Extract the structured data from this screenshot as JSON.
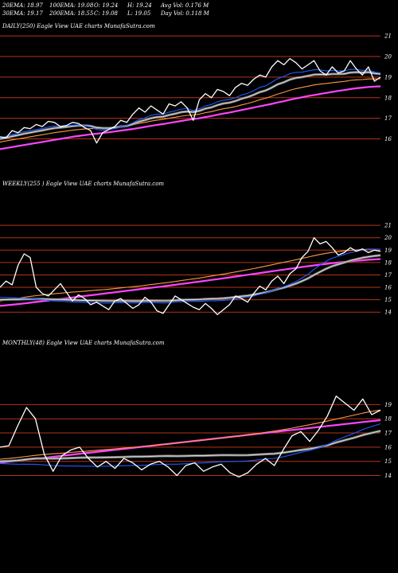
{
  "header": {
    "row1": [
      "20EMA: 18.97",
      "100EMA: 19.08",
      "O: 19.24",
      "H: 19.24",
      "Avg Vol: 0.176  M"
    ],
    "row2": [
      "30EMA: 19.17",
      "200EMA: 18.55",
      "C: 19.08",
      "L: 19.05",
      "Day Vol: 0.118  M"
    ]
  },
  "chart_data": [
    {
      "type": "line",
      "title": "DAILY(250) Eagle  View  UAE charts MunafaSutra.com",
      "yticks": [
        16,
        17,
        18,
        19,
        20,
        21
      ],
      "ylim": [
        15.4,
        21.2
      ],
      "series": [
        {
          "values": [
            16.1,
            16.05,
            16.4,
            16.3,
            16.55,
            16.5,
            16.7,
            16.6,
            16.85,
            16.8,
            16.6,
            16.65,
            16.8,
            16.75,
            16.55,
            16.4,
            15.8,
            16.3,
            16.45,
            16.6,
            16.9,
            16.8,
            17.2,
            17.5,
            17.3,
            17.6,
            17.4,
            17.2,
            17.7,
            17.6,
            17.8,
            17.5,
            16.9,
            17.9,
            18.2,
            18.0,
            18.4,
            18.3,
            18.1,
            18.5,
            18.7,
            18.6,
            18.9,
            19.1,
            19.0,
            19.5,
            19.8,
            19.6,
            19.9,
            19.7,
            19.4,
            19.6,
            19.8,
            19.3,
            19.1,
            19.5,
            19.2,
            19.3,
            19.8,
            19.4,
            19.1,
            19.5,
            18.8,
            19.0
          ],
          "color": "#ffffff"
        },
        {
          "values": [
            16.05,
            16.12,
            16.2,
            16.28,
            16.35,
            16.4,
            16.45,
            16.5,
            16.58,
            16.62,
            16.62,
            16.63,
            16.66,
            16.68,
            16.64,
            16.58,
            16.45,
            16.42,
            16.45,
            16.5,
            16.6,
            16.65,
            16.78,
            16.93,
            17.02,
            17.14,
            17.2,
            17.2,
            17.3,
            17.36,
            17.45,
            17.47,
            17.38,
            17.46,
            17.6,
            17.67,
            17.8,
            17.88,
            17.91,
            18.0,
            18.13,
            18.21,
            18.34,
            18.5,
            18.58,
            18.75,
            18.93,
            19.03,
            19.17,
            19.23,
            19.24,
            19.3,
            19.36,
            19.35,
            19.3,
            19.32,
            19.3,
            19.3,
            19.38,
            19.38,
            19.33,
            19.35,
            19.25,
            19.2
          ],
          "color": "#1d5cff"
        },
        {
          "values": [
            16.0,
            16.05,
            16.12,
            16.18,
            16.25,
            16.3,
            16.36,
            16.41,
            16.47,
            16.52,
            16.55,
            16.58,
            16.62,
            16.65,
            16.65,
            16.62,
            16.55,
            16.52,
            16.52,
            16.54,
            16.6,
            16.63,
            16.72,
            16.83,
            16.91,
            17.0,
            17.06,
            17.08,
            17.16,
            17.22,
            17.3,
            17.33,
            17.3,
            17.36,
            17.47,
            17.53,
            17.64,
            17.72,
            17.76,
            17.84,
            17.95,
            18.03,
            18.14,
            18.27,
            18.35,
            18.49,
            18.65,
            18.75,
            18.88,
            18.96,
            19.0,
            19.06,
            19.12,
            19.13,
            19.12,
            19.15,
            19.15,
            19.16,
            19.22,
            19.24,
            19.22,
            19.24,
            19.18,
            19.15
          ],
          "color": "#d8d8d8"
        },
        {
          "values": [
            15.85,
            15.9,
            15.95,
            16.0,
            16.05,
            16.1,
            16.15,
            16.2,
            16.25,
            16.3,
            16.34,
            16.38,
            16.42,
            16.45,
            16.48,
            16.5,
            16.5,
            16.52,
            16.54,
            16.56,
            16.6,
            16.63,
            16.68,
            16.75,
            16.8,
            16.86,
            16.91,
            16.95,
            17.0,
            17.05,
            17.1,
            17.14,
            17.16,
            17.2,
            17.27,
            17.32,
            17.4,
            17.46,
            17.51,
            17.57,
            17.65,
            17.72,
            17.8,
            17.9,
            17.97,
            18.07,
            18.18,
            18.26,
            18.36,
            18.44,
            18.5,
            18.56,
            18.62,
            18.66,
            18.69,
            18.73,
            18.76,
            18.79,
            18.84,
            18.87,
            18.88,
            18.91,
            18.91,
            18.92
          ],
          "color": "#ff9944"
        },
        {
          "values": [
            15.5,
            15.55,
            15.6,
            15.65,
            15.7,
            15.75,
            15.8,
            15.85,
            15.9,
            15.95,
            16.0,
            16.05,
            16.1,
            16.14,
            16.18,
            16.22,
            16.25,
            16.28,
            16.32,
            16.36,
            16.4,
            16.44,
            16.48,
            16.53,
            16.58,
            16.63,
            16.68,
            16.72,
            16.77,
            16.82,
            16.87,
            16.92,
            16.96,
            17.0,
            17.06,
            17.11,
            17.17,
            17.23,
            17.28,
            17.34,
            17.4,
            17.46,
            17.52,
            17.58,
            17.64,
            17.7,
            17.77,
            17.83,
            17.9,
            17.96,
            18.02,
            18.08,
            18.13,
            18.18,
            18.23,
            18.28,
            18.33,
            18.37,
            18.42,
            18.46,
            18.49,
            18.52,
            18.54,
            18.55
          ],
          "color": "#ff44ff"
        }
      ]
    },
    {
      "type": "line",
      "title": "WEEKLY(255                                ) Eagle  View  UAE charts MunafaSutra.com",
      "yticks": [
        14,
        15,
        16,
        17,
        18,
        19,
        20,
        21
      ],
      "ylim": [
        13.5,
        21.2
      ],
      "series": [
        {
          "values": [
            16.0,
            16.5,
            16.2,
            17.8,
            18.7,
            18.4,
            16.0,
            15.5,
            15.3,
            15.8,
            16.3,
            15.6,
            14.9,
            15.4,
            15.1,
            14.6,
            14.8,
            14.5,
            14.2,
            14.9,
            15.1,
            14.7,
            14.3,
            14.6,
            15.2,
            14.8,
            14.1,
            13.9,
            14.6,
            15.3,
            15.0,
            14.7,
            14.4,
            14.2,
            14.7,
            14.3,
            13.8,
            14.2,
            14.6,
            15.3,
            15.1,
            14.8,
            15.5,
            16.1,
            15.8,
            16.5,
            16.9,
            16.3,
            17.1,
            17.5,
            18.4,
            18.9,
            20.0,
            19.5,
            19.7,
            19.2,
            18.6,
            18.8,
            19.2,
            18.9,
            19.1,
            18.8,
            19.0,
            18.9
          ],
          "color": "#ffffff"
        },
        {
          "values": [
            15.2,
            15.18,
            15.16,
            15.14,
            15.12,
            15.1,
            15.05,
            15.0,
            14.95,
            14.9,
            14.88,
            14.85,
            14.82,
            14.8,
            14.78,
            14.76,
            14.75,
            14.74,
            14.73,
            14.75,
            14.76,
            14.75,
            14.74,
            14.74,
            14.77,
            14.78,
            14.76,
            14.74,
            14.76,
            14.8,
            14.84,
            14.86,
            14.86,
            14.86,
            14.9,
            14.92,
            14.92,
            14.95,
            14.99,
            15.06,
            15.14,
            15.2,
            15.3,
            15.43,
            15.56,
            15.72,
            15.9,
            16.05,
            16.25,
            16.47,
            16.75,
            17.05,
            17.45,
            17.8,
            18.1,
            18.35,
            18.5,
            18.65,
            18.8,
            18.9,
            19.0,
            19.05,
            19.08,
            19.08
          ],
          "color": "#1d5cff"
        },
        {
          "values": [
            15.0,
            15.01,
            15.02,
            15.03,
            15.05,
            15.06,
            15.06,
            15.05,
            15.04,
            15.03,
            15.02,
            15.0,
            14.98,
            14.96,
            14.95,
            14.94,
            14.93,
            14.92,
            14.91,
            14.91,
            14.91,
            14.91,
            14.9,
            14.9,
            14.92,
            14.93,
            14.92,
            14.91,
            14.92,
            14.95,
            14.98,
            15.0,
            15.01,
            15.02,
            15.05,
            15.08,
            15.09,
            15.12,
            15.16,
            15.22,
            15.28,
            15.33,
            15.41,
            15.5,
            15.6,
            15.72,
            15.86,
            15.98,
            16.13,
            16.3,
            16.5,
            16.72,
            17.0,
            17.25,
            17.5,
            17.7,
            17.85,
            18.0,
            18.15,
            18.27,
            18.38,
            18.46,
            18.53,
            18.58
          ],
          "color": "#d8d8d8"
        },
        {
          "values": [
            14.9,
            14.98,
            15.05,
            15.12,
            15.2,
            15.27,
            15.33,
            15.38,
            15.43,
            15.48,
            15.53,
            15.57,
            15.61,
            15.65,
            15.69,
            15.73,
            15.77,
            15.81,
            15.85,
            15.9,
            15.95,
            16.0,
            16.05,
            16.1,
            16.16,
            16.22,
            16.28,
            16.34,
            16.4,
            16.47,
            16.54,
            16.61,
            16.68,
            16.75,
            16.83,
            16.91,
            16.99,
            17.07,
            17.15,
            17.24,
            17.33,
            17.42,
            17.51,
            17.61,
            17.71,
            17.81,
            17.92,
            18.02,
            18.12,
            18.22,
            18.33,
            18.44,
            18.55,
            18.65,
            18.74,
            18.82,
            18.88,
            18.94,
            18.98,
            19.02,
            19.05,
            19.07,
            19.08,
            19.08
          ],
          "color": "#ff9944"
        },
        {
          "values": [
            14.5,
            14.55,
            14.6,
            14.65,
            14.7,
            14.76,
            14.82,
            14.88,
            14.94,
            15.0,
            15.06,
            15.12,
            15.18,
            15.24,
            15.3,
            15.36,
            15.42,
            15.48,
            15.54,
            15.6,
            15.66,
            15.72,
            15.78,
            15.84,
            15.9,
            15.96,
            16.02,
            16.08,
            16.14,
            16.2,
            16.27,
            16.33,
            16.4,
            16.46,
            16.53,
            16.6,
            16.66,
            16.73,
            16.8,
            16.87,
            16.94,
            17.01,
            17.08,
            17.15,
            17.22,
            17.29,
            17.36,
            17.43,
            17.5,
            17.57,
            17.64,
            17.7,
            17.77,
            17.83,
            17.89,
            17.95,
            18.0,
            18.05,
            18.1,
            18.14,
            18.18,
            18.22,
            18.25,
            18.28
          ],
          "color": "#ff44ff"
        }
      ]
    },
    {
      "type": "line",
      "title": "MONTHLY(48) Eagle  View  UAE charts MunafaSutra.com",
      "yticks": [
        14,
        15,
        16,
        17,
        18,
        19
      ],
      "ylim": [
        13.3,
        20.2
      ],
      "series": [
        {
          "values": [
            16.0,
            16.1,
            17.5,
            18.8,
            18.0,
            15.5,
            14.3,
            15.4,
            15.8,
            16.0,
            15.2,
            14.6,
            15.0,
            14.5,
            15.2,
            14.9,
            14.4,
            14.8,
            15.0,
            14.6,
            14.0,
            14.7,
            14.9,
            14.3,
            14.6,
            14.8,
            14.2,
            13.9,
            14.2,
            14.8,
            15.2,
            14.7,
            15.8,
            16.8,
            17.1,
            16.4,
            17.2,
            18.2,
            19.6,
            19.1,
            18.6,
            19.4,
            18.3,
            18.6
          ],
          "color": "#ffffff"
        },
        {
          "values": [
            14.85,
            14.82,
            14.8,
            14.8,
            14.79,
            14.75,
            14.7,
            14.68,
            14.67,
            14.67,
            14.66,
            14.65,
            14.66,
            14.67,
            14.69,
            14.71,
            14.72,
            14.75,
            14.78,
            14.8,
            14.8,
            14.83,
            14.87,
            14.89,
            14.93,
            14.97,
            14.99,
            15.0,
            15.03,
            15.09,
            15.16,
            15.21,
            15.32,
            15.47,
            15.64,
            15.77,
            15.95,
            16.17,
            16.48,
            16.74,
            16.97,
            17.25,
            17.45,
            17.65
          ],
          "color": "#1d5cff"
        },
        {
          "values": [
            15.0,
            15.02,
            15.06,
            15.14,
            15.2,
            15.21,
            15.2,
            15.21,
            15.23,
            15.26,
            15.27,
            15.27,
            15.28,
            15.29,
            15.31,
            15.33,
            15.33,
            15.35,
            15.37,
            15.38,
            15.37,
            15.38,
            15.4,
            15.4,
            15.42,
            15.44,
            15.44,
            15.43,
            15.44,
            15.47,
            15.51,
            15.54,
            15.61,
            15.7,
            15.8,
            15.88,
            15.99,
            16.13,
            16.33,
            16.5,
            16.66,
            16.85,
            17.0,
            17.15
          ],
          "color": "#d8d8d8"
        },
        {
          "values": [
            15.15,
            15.2,
            15.27,
            15.35,
            15.42,
            15.48,
            15.53,
            15.58,
            15.63,
            15.68,
            15.73,
            15.78,
            15.83,
            15.88,
            15.93,
            15.99,
            16.05,
            16.11,
            16.17,
            16.23,
            16.29,
            16.36,
            16.43,
            16.5,
            16.57,
            16.64,
            16.71,
            16.79,
            16.87,
            16.95,
            17.04,
            17.13,
            17.23,
            17.34,
            17.46,
            17.58,
            17.71,
            17.84,
            17.98,
            18.12,
            18.26,
            18.4,
            18.52,
            18.62
          ],
          "color": "#ff9944"
        },
        {
          "values": [
            14.9,
            14.97,
            15.04,
            15.11,
            15.18,
            15.25,
            15.32,
            15.39,
            15.46,
            15.53,
            15.6,
            15.67,
            15.74,
            15.81,
            15.88,
            15.95,
            16.02,
            16.09,
            16.16,
            16.23,
            16.3,
            16.37,
            16.44,
            16.51,
            16.58,
            16.65,
            16.72,
            16.79,
            16.86,
            16.93,
            17.0,
            17.07,
            17.14,
            17.21,
            17.28,
            17.35,
            17.42,
            17.49,
            17.56,
            17.63,
            17.7,
            17.77,
            17.84,
            17.9
          ],
          "color": "#ff44ff"
        }
      ]
    }
  ]
}
